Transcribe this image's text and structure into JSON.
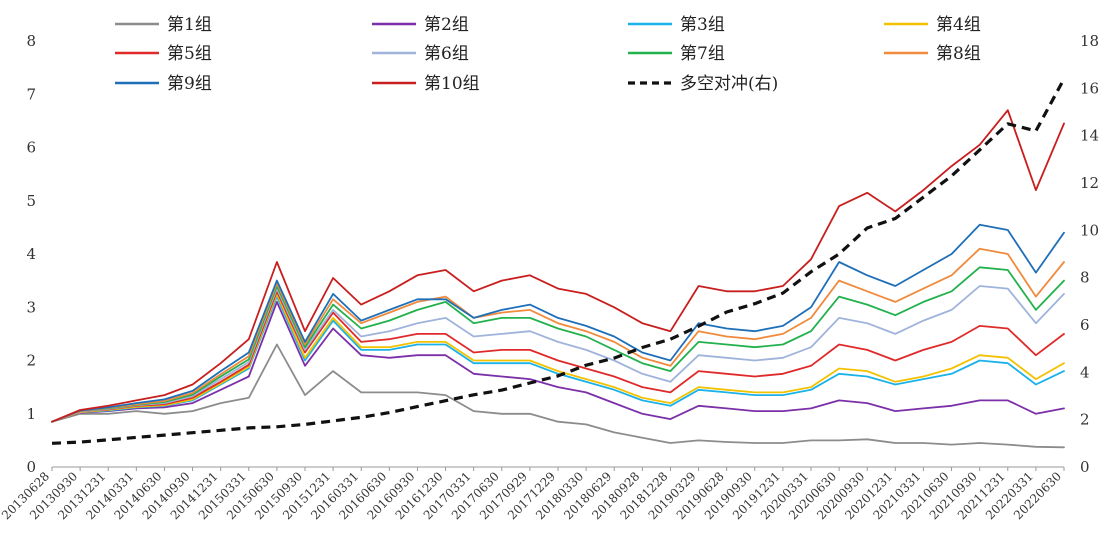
{
  "chart_data": {
    "type": "line",
    "title": "",
    "xlabel": "",
    "ylabel": "",
    "ylim": [
      0,
      8
    ],
    "y2lim": [
      0,
      18
    ],
    "x_ticks": [
      "20130628",
      "20130930",
      "20131231",
      "20140331",
      "20140630",
      "20140930",
      "20141231",
      "20150331",
      "20150630",
      "20150930",
      "20151231",
      "20160331",
      "20160630",
      "20160930",
      "20161230",
      "20170331",
      "20170630",
      "20170929",
      "20171229",
      "20180330",
      "20180629",
      "20180928",
      "20181228",
      "20190329",
      "20190628",
      "20190930",
      "20191231",
      "20200331",
      "20200630",
      "20200930",
      "20201231",
      "20210331",
      "20210630",
      "20210930",
      "20211231",
      "20220331",
      "20220630"
    ],
    "y_ticks": [
      "0",
      "1",
      "2",
      "3",
      "4",
      "5",
      "6",
      "7",
      "8"
    ],
    "y2_ticks": [
      "0",
      "2",
      "4",
      "6",
      "8",
      "10",
      "12",
      "14",
      "16",
      "18"
    ],
    "legend_position": "top",
    "series": [
      {
        "name": "第1组",
        "color": "#8c8c8c",
        "axis": "left",
        "dashed": false,
        "values": [
          0.85,
          1.0,
          1.0,
          1.05,
          1.0,
          1.05,
          1.2,
          1.3,
          2.3,
          1.35,
          1.8,
          1.4,
          1.4,
          1.4,
          1.35,
          1.05,
          1.0,
          1.0,
          0.85,
          0.8,
          0.65,
          0.55,
          0.45,
          0.5,
          0.47,
          0.45,
          0.45,
          0.5,
          0.5,
          0.52,
          0.45,
          0.45,
          0.42,
          0.45,
          0.42,
          0.38,
          0.37
        ]
      },
      {
        "name": "第2组",
        "color": "#7b2fa8",
        "axis": "left",
        "dashed": false,
        "values": [
          0.85,
          1.02,
          1.05,
          1.1,
          1.12,
          1.2,
          1.45,
          1.7,
          3.1,
          1.9,
          2.6,
          2.1,
          2.05,
          2.1,
          2.1,
          1.75,
          1.7,
          1.65,
          1.5,
          1.4,
          1.2,
          1.0,
          0.9,
          1.15,
          1.1,
          1.05,
          1.05,
          1.1,
          1.25,
          1.2,
          1.05,
          1.1,
          1.15,
          1.25,
          1.25,
          1.0,
          1.1
        ]
      },
      {
        "name": "第3组",
        "color": "#1ab2e8",
        "axis": "left",
        "dashed": false,
        "values": [
          0.85,
          1.03,
          1.06,
          1.12,
          1.15,
          1.25,
          1.55,
          1.85,
          3.2,
          2.0,
          2.75,
          2.2,
          2.2,
          2.3,
          2.3,
          1.95,
          1.95,
          1.95,
          1.75,
          1.6,
          1.45,
          1.25,
          1.15,
          1.45,
          1.4,
          1.35,
          1.35,
          1.45,
          1.75,
          1.7,
          1.55,
          1.65,
          1.75,
          2.0,
          1.95,
          1.55,
          1.8
        ]
      },
      {
        "name": "第4组",
        "color": "#f2c200",
        "axis": "left",
        "dashed": false,
        "values": [
          0.85,
          1.03,
          1.07,
          1.13,
          1.16,
          1.27,
          1.57,
          1.88,
          3.25,
          2.05,
          2.8,
          2.25,
          2.25,
          2.35,
          2.35,
          2.0,
          2.0,
          2.0,
          1.8,
          1.65,
          1.5,
          1.3,
          1.2,
          1.5,
          1.45,
          1.4,
          1.4,
          1.5,
          1.85,
          1.8,
          1.6,
          1.7,
          1.85,
          2.1,
          2.05,
          1.65,
          1.95
        ]
      },
      {
        "name": "第5组",
        "color": "#e02a2a",
        "axis": "left",
        "dashed": false,
        "values": [
          0.85,
          1.04,
          1.08,
          1.15,
          1.18,
          1.3,
          1.6,
          1.92,
          3.3,
          2.15,
          2.9,
          2.35,
          2.4,
          2.5,
          2.5,
          2.15,
          2.2,
          2.2,
          2.0,
          1.85,
          1.7,
          1.5,
          1.4,
          1.8,
          1.75,
          1.7,
          1.75,
          1.9,
          2.3,
          2.2,
          2.0,
          2.2,
          2.35,
          2.65,
          2.6,
          2.1,
          2.5
        ]
      },
      {
        "name": "第6组",
        "color": "#9fb3db",
        "axis": "left",
        "dashed": false,
        "values": [
          0.85,
          1.04,
          1.09,
          1.16,
          1.2,
          1.33,
          1.65,
          1.97,
          3.35,
          2.2,
          2.95,
          2.45,
          2.55,
          2.7,
          2.8,
          2.45,
          2.5,
          2.55,
          2.35,
          2.2,
          2.0,
          1.75,
          1.6,
          2.1,
          2.05,
          2.0,
          2.05,
          2.25,
          2.8,
          2.7,
          2.5,
          2.75,
          2.95,
          3.4,
          3.35,
          2.7,
          3.25
        ]
      },
      {
        "name": "第7组",
        "color": "#22b14c",
        "axis": "left",
        "dashed": false,
        "values": [
          0.85,
          1.05,
          1.1,
          1.17,
          1.22,
          1.36,
          1.7,
          2.02,
          3.4,
          2.25,
          3.05,
          2.6,
          2.75,
          2.95,
          3.1,
          2.7,
          2.8,
          2.8,
          2.6,
          2.45,
          2.2,
          1.95,
          1.8,
          2.35,
          2.3,
          2.25,
          2.3,
          2.55,
          3.2,
          3.05,
          2.85,
          3.1,
          3.3,
          3.75,
          3.7,
          2.95,
          3.5
        ]
      },
      {
        "name": "第8组",
        "color": "#f08a3c",
        "axis": "left",
        "dashed": false,
        "values": [
          0.85,
          1.05,
          1.11,
          1.18,
          1.24,
          1.39,
          1.74,
          2.08,
          3.45,
          2.3,
          3.15,
          2.7,
          2.9,
          3.1,
          3.2,
          2.8,
          2.9,
          2.95,
          2.7,
          2.55,
          2.35,
          2.05,
          1.9,
          2.55,
          2.45,
          2.4,
          2.5,
          2.8,
          3.5,
          3.3,
          3.1,
          3.35,
          3.6,
          4.1,
          4.0,
          3.2,
          3.85
        ]
      },
      {
        "name": "第9组",
        "color": "#1f6fb8",
        "axis": "left",
        "dashed": false,
        "values": [
          0.85,
          1.06,
          1.12,
          1.2,
          1.27,
          1.43,
          1.8,
          2.15,
          3.5,
          2.35,
          3.25,
          2.75,
          2.95,
          3.15,
          3.15,
          2.8,
          2.95,
          3.05,
          2.8,
          2.65,
          2.45,
          2.15,
          2.0,
          2.7,
          2.6,
          2.55,
          2.65,
          3.0,
          3.85,
          3.6,
          3.4,
          3.7,
          4.0,
          4.55,
          4.45,
          3.65,
          4.4
        ]
      },
      {
        "name": "第10组",
        "color": "#c81e1e",
        "axis": "left",
        "dashed": false,
        "values": [
          0.85,
          1.07,
          1.15,
          1.25,
          1.35,
          1.55,
          1.95,
          2.4,
          3.85,
          2.55,
          3.55,
          3.05,
          3.3,
          3.6,
          3.7,
          3.3,
          3.5,
          3.6,
          3.35,
          3.25,
          3.0,
          2.7,
          2.55,
          3.4,
          3.3,
          3.3,
          3.4,
          3.9,
          4.9,
          5.15,
          4.8,
          5.2,
          5.65,
          6.05,
          6.7,
          5.2,
          6.45
        ]
      },
      {
        "name": "多空对冲(右)",
        "color": "#111111",
        "axis": "right",
        "dashed": true,
        "values": [
          1.0,
          1.05,
          1.15,
          1.25,
          1.35,
          1.45,
          1.55,
          1.65,
          1.7,
          1.8,
          1.95,
          2.1,
          2.3,
          2.55,
          2.8,
          3.05,
          3.25,
          3.55,
          3.85,
          4.3,
          4.6,
          5.05,
          5.4,
          5.95,
          6.55,
          6.9,
          7.35,
          8.25,
          9.0,
          10.1,
          10.5,
          11.4,
          12.3,
          13.4,
          14.5,
          14.2,
          16.4
        ]
      }
    ]
  }
}
